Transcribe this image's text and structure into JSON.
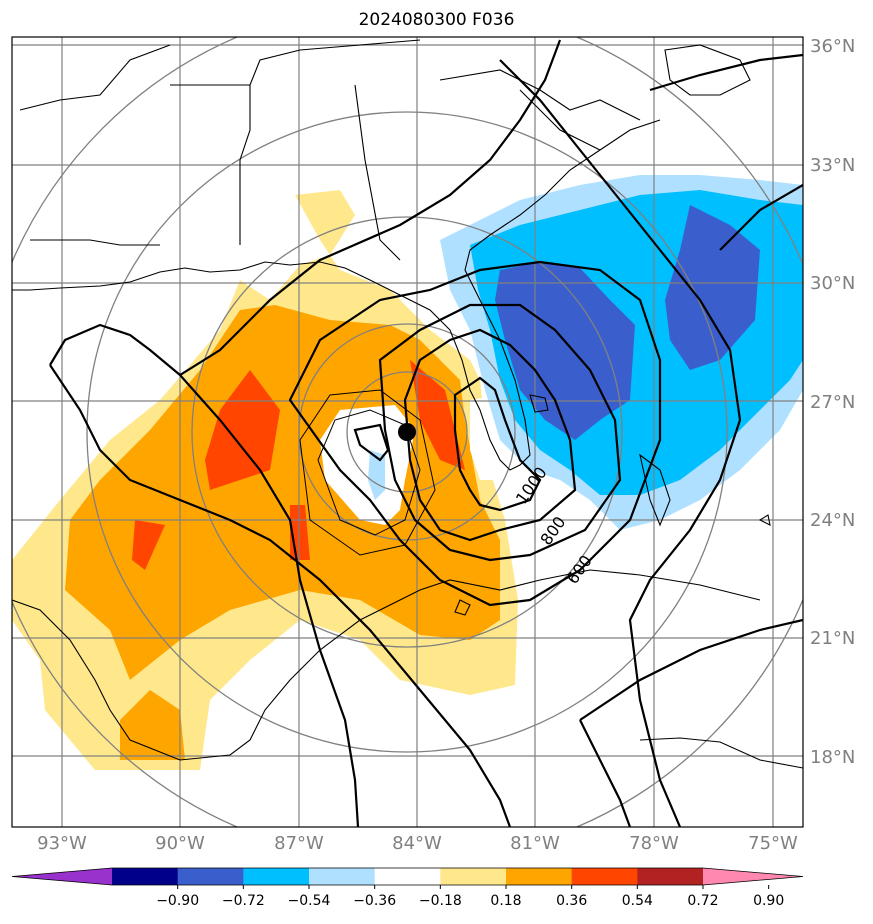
{
  "title": "2024080300 F036",
  "lat_labels": [
    "36°N",
    "33°N",
    "30°N",
    "27°N",
    "24°N",
    "21°N",
    "18°N"
  ],
  "lon_labels": [
    "93°W",
    "90°W",
    "87°W",
    "84°W",
    "81°W",
    "78°W",
    "75°W"
  ],
  "colorbar": {
    "ticks": [
      "−0.90",
      "−0.72",
      "−0.54",
      "−0.36",
      "−0.18",
      "0.18",
      "0.36",
      "0.54",
      "0.72",
      "0.90"
    ],
    "colors": [
      "#9932cc",
      "#00008b",
      "#3a5fcd",
      "#00bfff",
      "#b0e0ff",
      "#ffffff",
      "#ffe88c",
      "#ffa500",
      "#ff4500",
      "#b22222",
      "#ff88b0"
    ]
  },
  "contour_labels": [
    "1000",
    "800",
    "600"
  ],
  "colors": {
    "grid": "#808080",
    "coast": "#000000",
    "contour": "#000000",
    "center_marker": "#000000"
  }
}
